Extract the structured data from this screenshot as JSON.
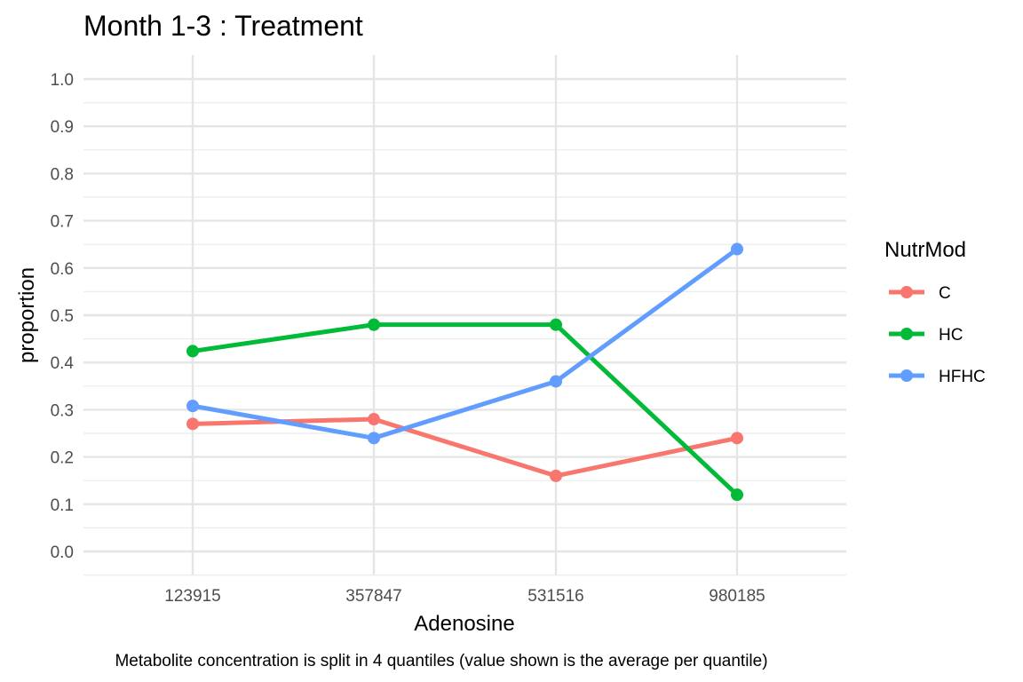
{
  "chart_data": {
    "type": "line",
    "title": "Month 1-3 : Treatment",
    "xlabel": "Adenosine",
    "ylabel": "proportion",
    "caption": "Metabolite concentration is split in 4 quantiles (value shown is the average per quantile)",
    "categories": [
      "123915",
      "357847",
      "531516",
      "980185"
    ],
    "y_ticks": [
      "0.0",
      "0.1",
      "0.2",
      "0.3",
      "0.4",
      "0.5",
      "0.6",
      "0.7",
      "0.8",
      "0.9",
      "1.0"
    ],
    "ylim": [
      0,
      1
    ],
    "grid": true,
    "legend": {
      "title": "NutrMod",
      "placement": "right"
    },
    "series": [
      {
        "name": "C",
        "color": "#F8766D",
        "values": [
          0.27,
          0.28,
          0.16,
          0.24
        ]
      },
      {
        "name": "HC",
        "color": "#00BA38",
        "values": [
          0.424,
          0.48,
          0.48,
          0.12
        ]
      },
      {
        "name": "HFHC",
        "color": "#619CFF",
        "values": [
          0.308,
          0.24,
          0.36,
          0.64
        ]
      }
    ]
  }
}
